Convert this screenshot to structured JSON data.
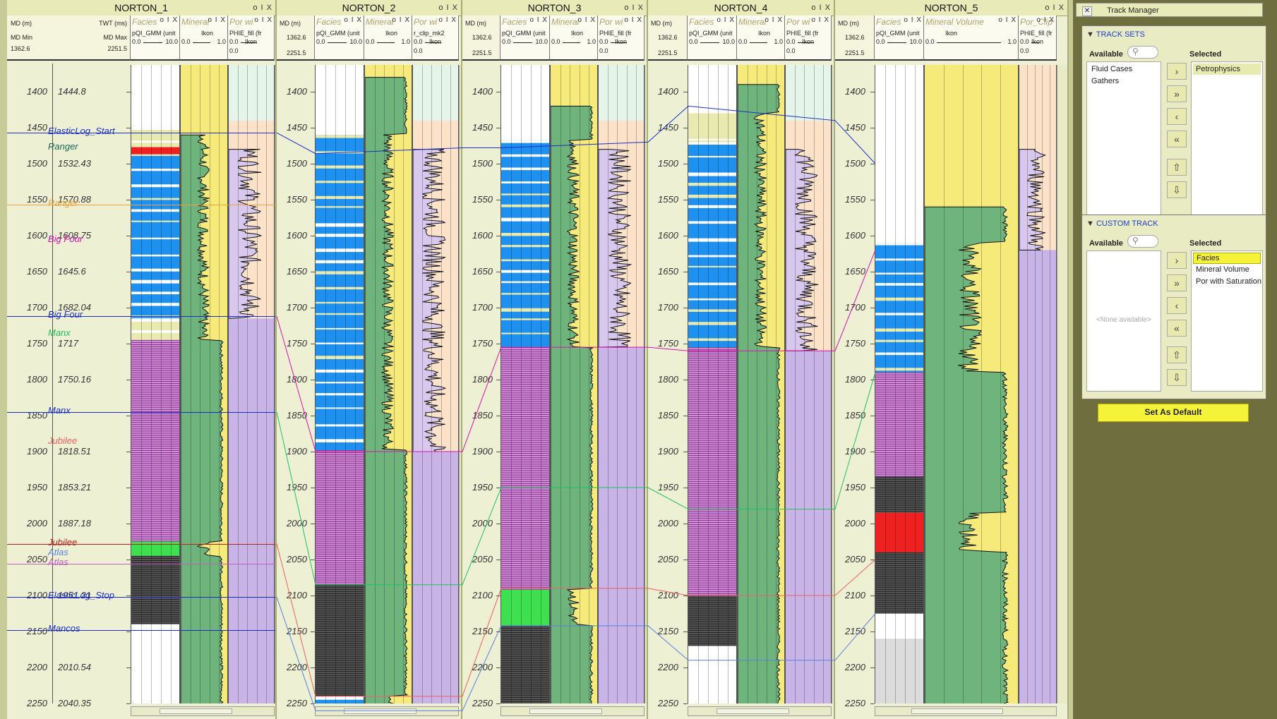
{
  "wells": [
    {
      "name": "NORTON_1"
    },
    {
      "name": "NORTON_2"
    },
    {
      "name": "NORTON_3"
    },
    {
      "name": "NORTON_4"
    },
    {
      "name": "NORTON_5"
    }
  ],
  "well_ctrl": "o I X",
  "depth_header": {
    "md_label": "MD (m)",
    "twt_label": "TWT (ms)",
    "md_min_label": "MD Min",
    "md_max_label": "MD Max",
    "md_min": "1362.6",
    "md_max": "2251.5"
  },
  "track_headers": {
    "facies": "Facies",
    "mineral": "Mineral",
    "mineral_full": "Mineral Volume",
    "por": "Por wi",
    "por_clip": "Por_Clip",
    "gmm_curve": "pQI_GMM (unit",
    "gmm_min": "0.0",
    "gmm_max": "10.0",
    "mineral_curve": "Ikon",
    "mineral_min": "0.0",
    "mineral_max": "1.0",
    "phie_curve": "PHIE_fill (fr",
    "phie_curve2": "r_clip_mk2",
    "phie_min": "0.0",
    "phie_unit": "Ikon"
  },
  "depth_ticks": [
    "1400",
    "1450",
    "1500",
    "1550",
    "1600",
    "1650",
    "1700",
    "1750",
    "1800",
    "1850",
    "1900",
    "1950",
    "2000",
    "2050",
    "2100",
    "2150",
    "2200",
    "2250"
  ],
  "twt_ticks": [
    "1444.8",
    "",
    "1532.43",
    "1570.88",
    "1608.75",
    "1645.6",
    "1682.04",
    "1717",
    "1750.16",
    "",
    "1818.51",
    "1853.21",
    "1887.18",
    "",
    "1951.21",
    "",
    "2010.54",
    "2040.35"
  ],
  "tops_well1": [
    {
      "name": "ElasticLog_Start",
      "color": "#1a2ecc"
    },
    {
      "name": "Ranger",
      "color": "#1a6a5a"
    },
    {
      "name": "Ranger",
      "color": "#f0a040"
    },
    {
      "name": "Big Four",
      "color": "#e010b0"
    },
    {
      "name": "Big Four",
      "color": "#1a2ecc"
    },
    {
      "name": "Manx",
      "color": "#20c060"
    },
    {
      "name": "Manx",
      "color": "#1a2ecc"
    },
    {
      "name": "Jubilee",
      "color": "#f06060"
    },
    {
      "name": "Jubilee",
      "color": "#c02020"
    },
    {
      "name": "Atlas",
      "color": "#5a80e0"
    },
    {
      "name": "Atlas",
      "color": "#c060c0"
    },
    {
      "name": "ElasticLog_Stop",
      "color": "#1a2ecc"
    },
    {
      "name": "Mancos",
      "color": "#1a2ecc"
    }
  ],
  "track_manager": {
    "title": "Track Manager",
    "track_sets_title": "TRACK SETS",
    "available_label": "Available",
    "selected_label": "Selected",
    "track_sets_available": [
      "Fluid Cases",
      "Gathers"
    ],
    "track_sets_selected": [
      "Petrophysics"
    ],
    "custom_track_title": "CUSTOM TRACK",
    "custom_available_empty": "<None available>",
    "custom_selected": [
      "Facies",
      "Mineral Volume",
      "Por with Saturation"
    ],
    "set_default_label": "Set As Default"
  },
  "colors": {
    "sand_blue": "#1e90ef",
    "shale_purple": "#d68ad8",
    "coal_gray": "#555555",
    "green_facies": "#3ee050",
    "red_facies": "#ee2020",
    "mineral_green": "#6fb47c",
    "mineral_yellow": "#f5ea7a",
    "por_purple": "#c8b4e6",
    "por_peach": "#fbe2c8"
  }
}
